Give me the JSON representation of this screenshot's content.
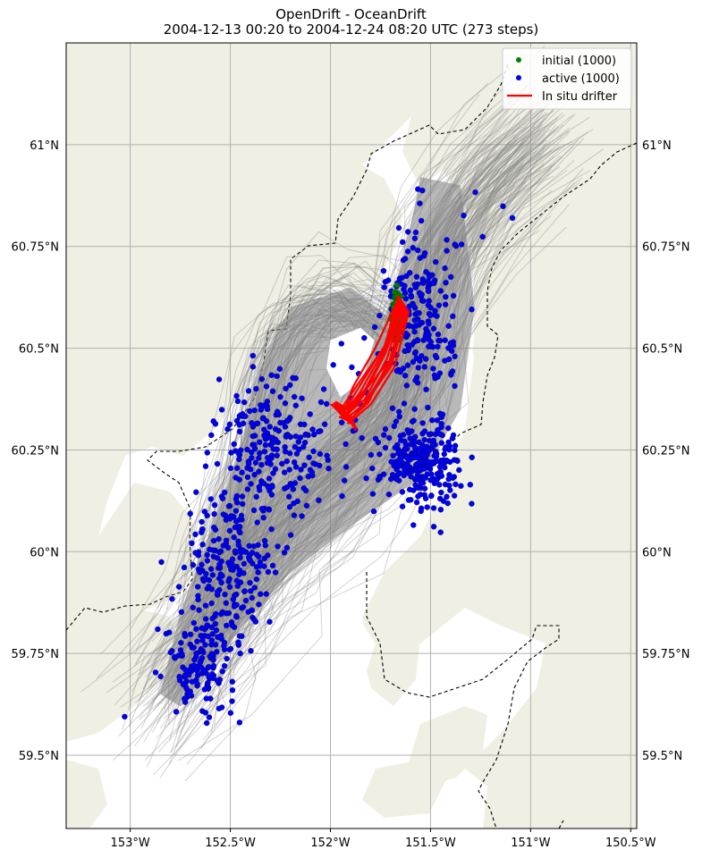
{
  "title_line1": "OpenDrift - OceanDrift",
  "title_line2": "2004-12-13 00:20 to 2004-12-24 08:20 UTC (273 steps)",
  "map": {
    "lon_range": [
      -153.32,
      -150.47
    ],
    "lat_range": [
      59.32,
      61.25
    ],
    "lon_ticks": [
      {
        "value": -153.0,
        "label": "153°W"
      },
      {
        "value": -152.5,
        "label": "152.5°W"
      },
      {
        "value": -152.0,
        "label": "152°W"
      },
      {
        "value": -151.5,
        "label": "151.5°W"
      },
      {
        "value": -151.0,
        "label": "151°W"
      },
      {
        "value": -150.5,
        "label": "150.5°W"
      }
    ],
    "lat_ticks": [
      {
        "value": 61.0,
        "label": "61°N"
      },
      {
        "value": 60.75,
        "label": "60.75°N"
      },
      {
        "value": 60.5,
        "label": "60.5°N"
      },
      {
        "value": 60.25,
        "label": "60.25°N"
      },
      {
        "value": 60.0,
        "label": "60°N"
      },
      {
        "value": 59.75,
        "label": "59.75°N"
      },
      {
        "value": 59.5,
        "label": "59.5°N"
      }
    ],
    "grid": true,
    "land_color": "#efefe4",
    "water_color": "#ffffff",
    "trajectory_color": "#808080",
    "boundary_style": "dashed"
  },
  "legend": {
    "placement": "top-right",
    "entries": [
      {
        "label": "initial (1000)",
        "color": "#008000",
        "marker": "dot"
      },
      {
        "label": "active (1000)",
        "color": "#0000ee",
        "marker": "dot"
      },
      {
        "label": "In situ drifter",
        "color": "#ff0000",
        "marker": "line"
      }
    ]
  },
  "chart_data": {
    "type": "scatter",
    "series": [
      {
        "name": "initial (1000)",
        "count": 1000,
        "center_lon": -151.67,
        "center_lat": 60.59
      },
      {
        "name": "active (1000)",
        "count": 1000
      },
      {
        "name": "In situ drifter",
        "path": [
          [
            -151.66,
            60.63
          ],
          [
            -151.75,
            60.5
          ],
          [
            -151.86,
            60.4
          ],
          [
            -151.94,
            60.36
          ],
          [
            -151.98,
            60.37
          ],
          [
            -151.92,
            60.34
          ]
        ]
      }
    ],
    "active_clusters": [
      {
        "lon": -151.55,
        "lat": 60.22,
        "spread_lon": 0.14,
        "spread_lat": 0.07,
        "n": 260
      },
      {
        "lon": -151.55,
        "lat": 60.55,
        "spread_lon": 0.12,
        "spread_lat": 0.18,
        "n": 200
      },
      {
        "lon": -152.3,
        "lat": 60.25,
        "spread_lon": 0.2,
        "spread_lat": 0.12,
        "n": 220
      },
      {
        "lon": -152.5,
        "lat": 59.95,
        "spread_lon": 0.16,
        "spread_lat": 0.14,
        "n": 200
      },
      {
        "lon": -152.65,
        "lat": 59.72,
        "spread_lon": 0.12,
        "spread_lat": 0.08,
        "n": 120
      }
    ]
  }
}
